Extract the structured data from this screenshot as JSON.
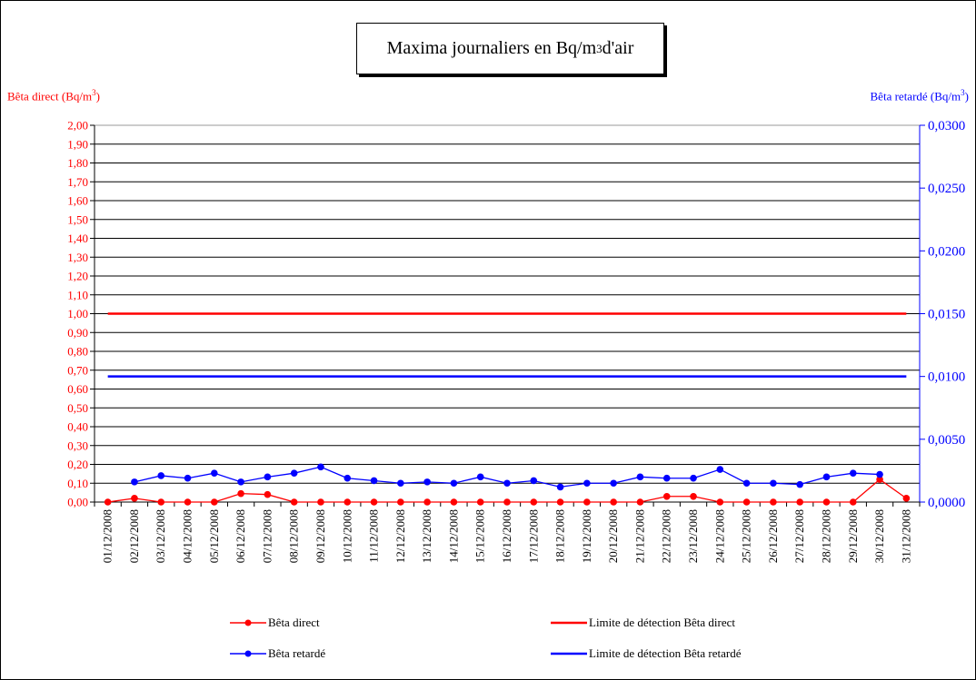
{
  "chart_data": {
    "type": "line",
    "title_main": "Maxima journaliers en Bq/m",
    "title_sup": "3",
    "title_tail": " d'air",
    "y_left_label_main": "Bêta direct (Bq/m",
    "y_left_label_sup": "3",
    "y_left_label_tail": ")",
    "y_right_label_main": "Bêta retardé (Bq/m",
    "y_right_label_sup": "3",
    "y_right_label_tail": ")",
    "categories": [
      "01/12/2008",
      "02/12/2008",
      "03/12/2008",
      "04/12/2008",
      "05/12/2008",
      "06/12/2008",
      "07/12/2008",
      "08/12/2008",
      "09/12/2008",
      "10/12/2008",
      "11/12/2008",
      "12/12/2008",
      "13/12/2008",
      "14/12/2008",
      "15/12/2008",
      "16/12/2008",
      "17/12/2008",
      "18/12/2008",
      "19/12/2008",
      "20/12/2008",
      "21/12/2008",
      "22/12/2008",
      "23/12/2008",
      "24/12/2008",
      "25/12/2008",
      "26/12/2008",
      "27/12/2008",
      "28/12/2008",
      "29/12/2008",
      "30/12/2008",
      "31/12/2008"
    ],
    "y_left_ticks": [
      "0,00",
      "0,10",
      "0,20",
      "0,30",
      "0,40",
      "0,50",
      "0,60",
      "0,70",
      "0,80",
      "0,90",
      "1,00",
      "1,10",
      "1,20",
      "1,30",
      "1,40",
      "1,50",
      "1,60",
      "1,70",
      "1,80",
      "1,90",
      "2,00"
    ],
    "y_right_ticks": [
      "0,0000",
      "0,0050",
      "0,0100",
      "0,0150",
      "0,0200",
      "0,0250",
      "0,0300"
    ],
    "ylim_left": [
      0,
      2.0
    ],
    "ylim_right": [
      0,
      0.03
    ],
    "grid": true,
    "series": [
      {
        "name": "Bêta direct",
        "axis": "left",
        "color": "#ff0000",
        "marker": "circle",
        "values": [
          0.0,
          0.02,
          0.0,
          0.0,
          0.0,
          0.045,
          0.04,
          0.0,
          0.0,
          0.0,
          0.0,
          0.0,
          0.0,
          0.0,
          0.0,
          0.0,
          0.0,
          0.0,
          0.0,
          0.0,
          0.0,
          0.03,
          0.03,
          0.0,
          0.0,
          0.0,
          0.0,
          0.0,
          0.0,
          0.12,
          0.02
        ]
      },
      {
        "name": "Bêta retardé",
        "axis": "right",
        "color": "#0000ff",
        "marker": "circle",
        "values": [
          null,
          0.0016,
          0.0021,
          0.0019,
          0.0023,
          0.0016,
          0.002,
          0.0023,
          0.0028,
          0.0019,
          0.0017,
          0.0015,
          0.0016,
          0.0015,
          0.002,
          0.0015,
          0.0017,
          0.0012,
          0.0015,
          0.0015,
          0.002,
          0.0019,
          0.0019,
          0.0026,
          0.0015,
          0.0015,
          0.0014,
          0.002,
          0.0023,
          0.0022,
          null
        ]
      },
      {
        "name": "Limite de détection Bêta direct",
        "axis": "left",
        "color": "#ff0000",
        "marker": "none",
        "constant": 1.0
      },
      {
        "name": "Limite de détection Bêta retardé",
        "axis": "right",
        "color": "#0000ff",
        "marker": "none",
        "constant": 0.01
      }
    ],
    "legend": [
      {
        "label": "Bêta direct",
        "color": "#ff0000",
        "marker": true
      },
      {
        "label": "Limite de détection Bêta direct",
        "color": "#ff0000",
        "marker": false
      },
      {
        "label": "Bêta retardé",
        "color": "#0000ff",
        "marker": true
      },
      {
        "label": "Limite de détection Bêta retardé",
        "color": "#0000ff",
        "marker": false
      }
    ],
    "legend_position": "bottom"
  }
}
